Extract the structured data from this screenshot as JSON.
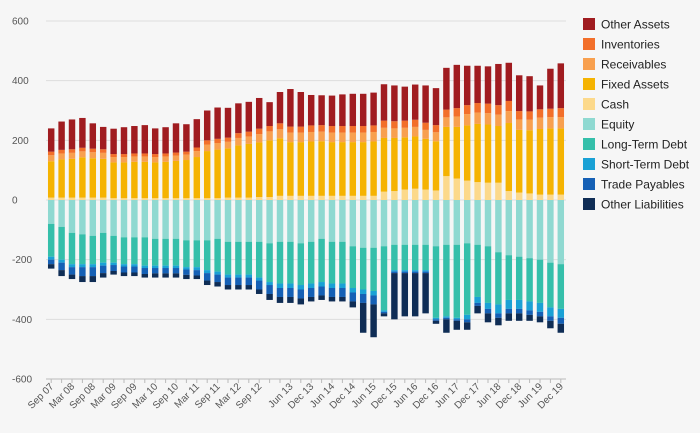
{
  "chart_data": {
    "type": "bar",
    "stacked": true,
    "title": "",
    "xlabel": "",
    "ylabel": "",
    "ylim": [
      -600,
      600
    ],
    "yticks": [
      600,
      400,
      200,
      0,
      -200,
      -400,
      -600
    ],
    "grid": "horizontal",
    "legend_position": "right",
    "categories": [
      "Sep 07",
      "Dec 07",
      "Mar 08",
      "Jun 08",
      "Sep 08",
      "Dec 08",
      "Mar 09",
      "Jun 09",
      "Sep 09",
      "Dec 09",
      "Mar 10",
      "Jun 10",
      "Sep 10",
      "Dec 10",
      "Mar 11",
      "Jun 11",
      "Sep 11",
      "Dec 11",
      "Mar 12",
      "Jun 12",
      "Sep 12",
      "Dec 12",
      "Mar 13",
      "Jun 13",
      "Sep 13",
      "Dec 13",
      "Mar 14",
      "Jun 14",
      "Sep 14",
      "Dec 14",
      "Mar 15",
      "Jun 15",
      "Sep 15",
      "Dec 15",
      "Mar 16",
      "Jun 16",
      "Sep 16",
      "Dec 16",
      "Mar 17",
      "Jun 17",
      "Sep 17",
      "Dec 17",
      "Mar 18",
      "Jun 18",
      "Sep 18",
      "Dec 18",
      "Mar 19",
      "Jun 19",
      "Sep 19",
      "Dec 19"
    ],
    "tick_labels": [
      "Sep 07",
      "Mar 08",
      "Sep 08",
      "Mar 09",
      "Sep 09",
      "Mar 10",
      "Sep 10",
      "Mar 11",
      "Sep 11",
      "Mar 12",
      "Sep 12",
      "Jun 13",
      "Dec 13",
      "Jun 14",
      "Dec 14",
      "Jun 15",
      "Dec 15",
      "Jun 16",
      "Dec 16",
      "Jun 17",
      "Dec 17",
      "Jun 18",
      "Dec 18",
      "Jun 19",
      "Dec 19"
    ],
    "asset_series": [
      {
        "name": "Cash",
        "color": "#fcd98b",
        "values": [
          8,
          8,
          8,
          8,
          8,
          8,
          6,
          6,
          6,
          6,
          6,
          6,
          6,
          6,
          6,
          6,
          6,
          8,
          8,
          8,
          10,
          10,
          14,
          14,
          14,
          14,
          14,
          14,
          14,
          14,
          14,
          14,
          28,
          30,
          35,
          38,
          35,
          32,
          80,
          72,
          65,
          60,
          58,
          58,
          30,
          25,
          22,
          18,
          18,
          18
        ]
      },
      {
        "name": "Fixed Assets",
        "color": "#f5b301",
        "values": [
          122,
          128,
          130,
          135,
          132,
          130,
          120,
          120,
          122,
          122,
          120,
          122,
          125,
          128,
          138,
          158,
          163,
          165,
          175,
          180,
          183,
          190,
          193,
          180,
          180,
          182,
          183,
          180,
          180,
          180,
          180,
          182,
          180,
          178,
          175,
          175,
          170,
          165,
          165,
          173,
          185,
          195,
          195,
          190,
          228,
          210,
          212,
          220,
          222,
          222
        ]
      },
      {
        "name": "Receivables",
        "color": "#f8a04f",
        "values": [
          20,
          20,
          20,
          20,
          20,
          20,
          18,
          18,
          18,
          18,
          18,
          18,
          18,
          18,
          20,
          22,
          22,
          22,
          25,
          25,
          28,
          30,
          30,
          32,
          32,
          32,
          32,
          32,
          32,
          32,
          32,
          32,
          34,
          32,
          32,
          32,
          30,
          30,
          32,
          35,
          38,
          38,
          38,
          38,
          40,
          35,
          35,
          38,
          38,
          38
        ]
      },
      {
        "name": "Inventories",
        "color": "#f26f2a",
        "values": [
          12,
          12,
          12,
          12,
          12,
          12,
          10,
          10,
          10,
          10,
          10,
          10,
          10,
          10,
          12,
          14,
          14,
          14,
          16,
          16,
          18,
          18,
          20,
          20,
          20,
          22,
          22,
          22,
          22,
          22,
          22,
          22,
          24,
          24,
          24,
          24,
          24,
          24,
          26,
          28,
          30,
          32,
          32,
          32,
          34,
          28,
          28,
          28,
          28,
          30
        ]
      },
      {
        "name": "Other Assets",
        "color": "#a01c20",
        "values": [
          78,
          95,
          100,
          100,
          85,
          75,
          85,
          90,
          92,
          95,
          86,
          88,
          98,
          92,
          95,
          100,
          105,
          100,
          100,
          100,
          103,
          80,
          105,
          126,
          116,
          102,
          100,
          102,
          106,
          108,
          108,
          110,
          122,
          120,
          114,
          118,
          125,
          124,
          140,
          145,
          132,
          125,
          125,
          138,
          128,
          120,
          118,
          80,
          134,
          150
        ]
      }
    ],
    "liability_series": [
      {
        "name": "Equity",
        "color": "#8fd9d1",
        "values": [
          -80,
          -90,
          -110,
          -115,
          -120,
          -110,
          -120,
          -125,
          -125,
          -125,
          -130,
          -130,
          -130,
          -135,
          -135,
          -135,
          -130,
          -140,
          -140,
          -140,
          -140,
          -145,
          -140,
          -140,
          -145,
          -140,
          -130,
          -140,
          -140,
          -155,
          -160,
          -160,
          -155,
          -150,
          -150,
          -150,
          -150,
          -155,
          -150,
          -150,
          -145,
          -150,
          -155,
          -175,
          -185,
          -190,
          -195,
          -200,
          -210,
          -215
        ]
      },
      {
        "name": "Long-Term Debt",
        "color": "#35bfaa",
        "values": [
          -110,
          -110,
          -105,
          -100,
          -95,
          -100,
          -90,
          -90,
          -90,
          -95,
          -90,
          -90,
          -90,
          -90,
          -90,
          -100,
          -110,
          -110,
          -110,
          -110,
          -120,
          -130,
          -140,
          -140,
          -140,
          -140,
          -145,
          -140,
          -140,
          -140,
          -140,
          -145,
          -215,
          -85,
          -85,
          -85,
          -85,
          -240,
          -240,
          -245,
          -240,
          -175,
          -190,
          -175,
          -150,
          -145,
          -145,
          -145,
          -150,
          -150
        ]
      },
      {
        "name": "Short-Term Debt",
        "color": "#1aa1d5",
        "values": [
          -10,
          -10,
          -10,
          -10,
          -10,
          -10,
          -8,
          -8,
          -8,
          -8,
          -8,
          -8,
          -8,
          -8,
          -10,
          -10,
          -10,
          -10,
          -10,
          -10,
          -10,
          -10,
          -15,
          -15,
          -15,
          -15,
          -15,
          -15,
          -15,
          -15,
          -15,
          -15,
          -5,
          -5,
          -5,
          -5,
          -5,
          -5,
          -5,
          -5,
          -15,
          -20,
          -20,
          -30,
          -30,
          -30,
          -30,
          -30,
          -30,
          -30
        ]
      },
      {
        "name": "Trade Payables",
        "color": "#1560b5",
        "values": [
          -15,
          -25,
          -25,
          -30,
          -30,
          -25,
          -20,
          -20,
          -20,
          -20,
          -18,
          -18,
          -18,
          -18,
          -18,
          -25,
          -25,
          -25,
          -25,
          -25,
          -30,
          -30,
          -30,
          -30,
          -30,
          -30,
          -30,
          -30,
          -30,
          -30,
          -30,
          -30,
          -5,
          -5,
          -5,
          -5,
          -5,
          -5,
          -5,
          -5,
          -10,
          -10,
          -15,
          -15,
          -15,
          -15,
          -15,
          -15,
          -15,
          -20
        ]
      },
      {
        "name": "Other Liabilities",
        "color": "#0f2d55",
        "values": [
          -15,
          -20,
          -15,
          -20,
          -20,
          -15,
          -12,
          -12,
          -12,
          -12,
          -14,
          -14,
          -14,
          -14,
          -12,
          -15,
          -15,
          -15,
          -15,
          -15,
          -15,
          -20,
          -20,
          -20,
          -20,
          -15,
          -15,
          -15,
          -15,
          -20,
          -100,
          -110,
          -10,
          -155,
          -145,
          -145,
          -135,
          -10,
          -45,
          -30,
          -25,
          -25,
          -30,
          -25,
          -25,
          -25,
          -20,
          -20,
          -25,
          -30
        ]
      }
    ],
    "legend": [
      "Other Assets",
      "Inventories",
      "Receivables",
      "Fixed Assets",
      "Cash",
      "Equity",
      "Long-Term Debt",
      "Short-Term Debt",
      "Trade Payables",
      "Other Liabilities"
    ],
    "legend_colors": {
      "Other Assets": "#a01c20",
      "Inventories": "#f26f2a",
      "Receivables": "#f8a04f",
      "Fixed Assets": "#f5b301",
      "Cash": "#fcd98b",
      "Equity": "#8fd9d1",
      "Long-Term Debt": "#35bfaa",
      "Short-Term Debt": "#1aa1d5",
      "Trade Payables": "#1560b5",
      "Other Liabilities": "#0f2d55"
    }
  }
}
